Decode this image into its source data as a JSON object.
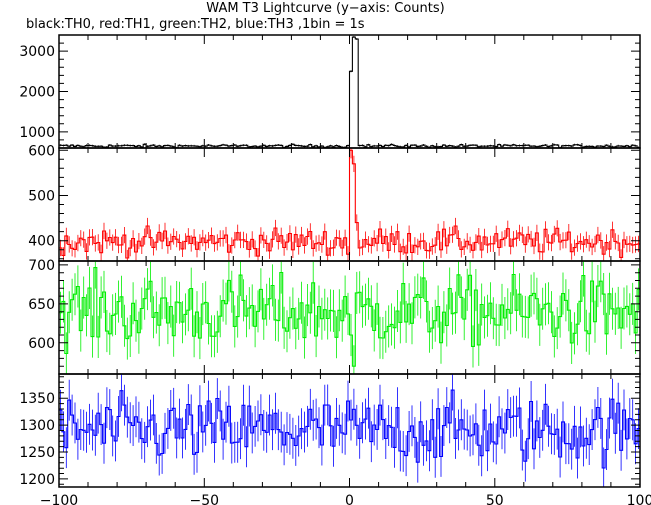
{
  "header": {
    "title": "WAM T3 Lightcurve (y−axis: Counts)",
    "subtitle": "black:TH0, red:TH1, green:TH2, blue:TH3 ,1bin = 1s"
  },
  "chart_data": {
    "type": "line",
    "style": "step histogram with error bars",
    "x_range": [
      -100,
      100
    ],
    "x_ticks": [
      -100,
      -50,
      0,
      50,
      100
    ],
    "x_tick_labels": [
      "−100",
      "−50",
      "0",
      "50",
      "100"
    ],
    "panels": [
      {
        "name": "TH0",
        "color": "#000000",
        "ylim": [
          600,
          3400
        ],
        "y_ticks": [
          1000,
          2000,
          3000
        ],
        "y_tick_labels": [
          "1000",
          "2000",
          "3000"
        ],
        "baseline": 650,
        "noise": 18,
        "error": 25,
        "features": [
          {
            "x": -1,
            "value": 660
          },
          {
            "x": 0,
            "value": 2500
          },
          {
            "x": 0.5,
            "value": 3300
          },
          {
            "x": 1,
            "value": 3350
          },
          {
            "x": 2,
            "value": 3300
          },
          {
            "x": 3,
            "value": 660
          }
        ]
      },
      {
        "name": "TH1",
        "color": "#ff0000",
        "ylim": [
          355,
          605
        ],
        "y_ticks": [
          400,
          500,
          600
        ],
        "y_tick_labels": [
          "400",
          "500",
          "600"
        ],
        "baseline": 398,
        "noise": 14,
        "error": 18,
        "features": [
          {
            "x": -1,
            "value": 370
          },
          {
            "x": 0,
            "value": 600
          },
          {
            "x": 1,
            "value": 570
          },
          {
            "x": 2,
            "value": 440
          }
        ]
      },
      {
        "name": "TH2",
        "color": "#00ee00",
        "ylim": [
          560,
          705
        ],
        "y_ticks": [
          600,
          650,
          700
        ],
        "y_tick_labels": [
          "600",
          "650",
          "700"
        ],
        "baseline": 640,
        "noise": 22,
        "error": 27,
        "features": [
          {
            "x": 0,
            "value": 610
          },
          {
            "x": 1,
            "value": 570
          }
        ]
      },
      {
        "name": "TH3",
        "color": "#0000ff",
        "ylim": [
          1185,
          1395
        ],
        "y_ticks": [
          1200,
          1250,
          1300,
          1350
        ],
        "y_tick_labels": [
          "1200",
          "1250",
          "1300",
          "1350"
        ],
        "baseline": 1290,
        "noise": 30,
        "error": 38,
        "features": []
      }
    ],
    "grid": false,
    "legend": "none"
  }
}
